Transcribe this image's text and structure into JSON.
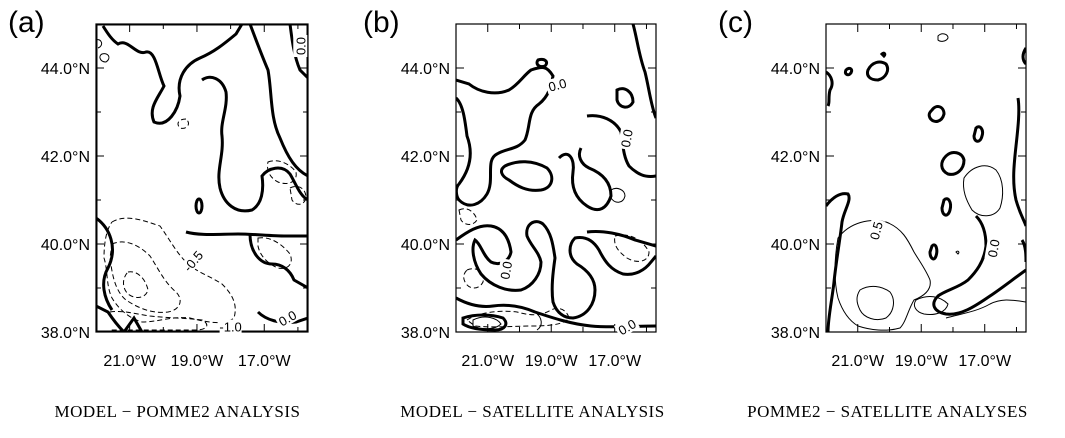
{
  "chart_data": [
    {
      "type": "contour",
      "panel_label": "(a)",
      "caption": "MODEL − POMME2 ANALYSIS",
      "ytick_labels": [
        "44.0°N",
        "42.0°N",
        "40.0°N",
        "38.0°N"
      ],
      "yticks": [
        44.0,
        42.0,
        40.0,
        38.0
      ],
      "xtick_labels": [
        "21.0°W",
        "19.0°W",
        "17.0°W"
      ],
      "xticks": [
        -21.0,
        -19.0,
        -17.0
      ],
      "xlim": [
        -22.0,
        -15.7
      ],
      "ylim": [
        38.0,
        45.0
      ],
      "contour_labels": [
        {
          "text": "0.0",
          "lon": -15.9,
          "lat": 44.5,
          "rotate": -90
        },
        {
          "text": "-0.5",
          "lon": -19.1,
          "lat": 39.6,
          "rotate": -50
        },
        {
          "text": "-1.0",
          "lon": -18.0,
          "lat": 38.1,
          "rotate": 0
        },
        {
          "text": "0.0",
          "lon": -16.3,
          "lat": 38.3,
          "rotate": -30
        }
      ]
    },
    {
      "type": "contour",
      "panel_label": "(b)",
      "caption": "MODEL − SATELLITE ANALYSIS",
      "ytick_labels": [
        "44.0°N",
        "42.0°N",
        "40.0°N",
        "38.0°N"
      ],
      "yticks": [
        44.0,
        42.0,
        40.0,
        38.0
      ],
      "xtick_labels": [
        "21.0°W",
        "19.0°W",
        "17.0°W"
      ],
      "xticks": [
        -21.0,
        -19.0,
        -17.0
      ],
      "xlim": [
        -22.0,
        -15.7
      ],
      "ylim": [
        38.0,
        45.0
      ],
      "contour_labels": [
        {
          "text": "0.0",
          "lon": -18.8,
          "lat": 43.6,
          "rotate": -15
        },
        {
          "text": "0.0",
          "lon": -16.6,
          "lat": 42.4,
          "rotate": -80
        },
        {
          "text": "0.0",
          "lon": -20.4,
          "lat": 39.4,
          "rotate": -80
        },
        {
          "text": "0.0",
          "lon": -16.6,
          "lat": 38.1,
          "rotate": -30
        }
      ]
    },
    {
      "type": "contour",
      "panel_label": "(c)",
      "caption": "POMME2 − SATELLITE ANALYSES",
      "ytick_labels": [
        "44.0°N",
        "42.0°N",
        "40.0°N",
        "38.0°N"
      ],
      "yticks": [
        44.0,
        42.0,
        40.0,
        38.0
      ],
      "xtick_labels": [
        "21.0°W",
        "19.0°W",
        "17.0°W"
      ],
      "xticks": [
        -21.0,
        -19.0,
        -17.0
      ],
      "xlim": [
        -22.0,
        -15.7
      ],
      "ylim": [
        38.0,
        45.0
      ],
      "contour_labels": [
        {
          "text": "0.5",
          "lon": -20.4,
          "lat": 40.3,
          "rotate": -75
        },
        {
          "text": "0.0",
          "lon": -16.7,
          "lat": 39.9,
          "rotate": -80
        }
      ]
    }
  ]
}
